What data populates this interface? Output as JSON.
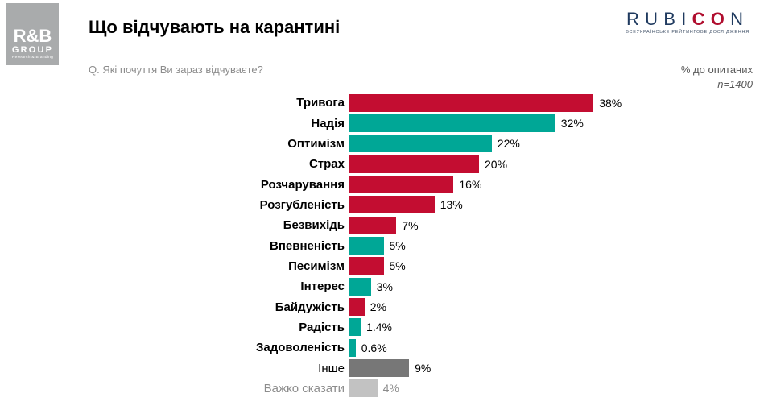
{
  "header": {
    "rb_logo": {
      "line1": "R&B",
      "line2": "GROUP",
      "line3": "Research & Branding"
    },
    "title": "Що відчувають на карантині",
    "rubicon": {
      "part1": "RUBI",
      "part_red": "CO",
      "part2": "N",
      "tagline": "ВСЕУКРАЇНСЬКЕ РЕЙТИНГОВЕ ДОСЛІДЖЕННЯ"
    }
  },
  "meta": {
    "question": "Q. Які почуття Ви зараз відчуваєте?",
    "note": "% до опитаних",
    "sample": "n=1400"
  },
  "colors": {
    "negative": "#C30D31",
    "positive": "#00A796",
    "other": "#777777",
    "dont_know": "#C2C2C2",
    "muted_text": "#8C8C8C"
  },
  "chart_data": {
    "type": "bar",
    "orientation": "horizontal",
    "title": "Що відчувають на карантині",
    "xlabel": "",
    "ylabel": "",
    "xlim": [
      0,
      40
    ],
    "grid": false,
    "legend": null,
    "unit": "%",
    "categories": [
      "Тривога",
      "Надія",
      "Оптимізм",
      "Страх",
      "Розчарування",
      "Розгубленість",
      "Безвихідь",
      "Впевненість",
      "Песимізм",
      "Інтерес",
      "Байдужість",
      "Радість",
      "Задоволеність",
      "Інше",
      "Важко сказати"
    ],
    "values": [
      38,
      32,
      22,
      20,
      16,
      13,
      7,
      5,
      5,
      3,
      2,
      1.4,
      0.6,
      9,
      4
    ],
    "value_labels": [
      "38%",
      "32%",
      "22%",
      "20%",
      "16%",
      "13%",
      "7%",
      "5%",
      "5%",
      "3%",
      "2%",
      "1.4%",
      "0.6%",
      "9%",
      "4%"
    ],
    "bar_colors": [
      "#C30D31",
      "#00A796",
      "#00A796",
      "#C30D31",
      "#C30D31",
      "#C30D31",
      "#C30D31",
      "#00A796",
      "#C30D31",
      "#00A796",
      "#C30D31",
      "#00A796",
      "#00A796",
      "#777777",
      "#C2C2C2"
    ],
    "label_bold": [
      true,
      true,
      true,
      true,
      true,
      true,
      true,
      true,
      true,
      true,
      true,
      true,
      true,
      false,
      false
    ],
    "label_muted": [
      false,
      false,
      false,
      false,
      false,
      false,
      false,
      false,
      false,
      false,
      false,
      false,
      false,
      false,
      true
    ]
  }
}
